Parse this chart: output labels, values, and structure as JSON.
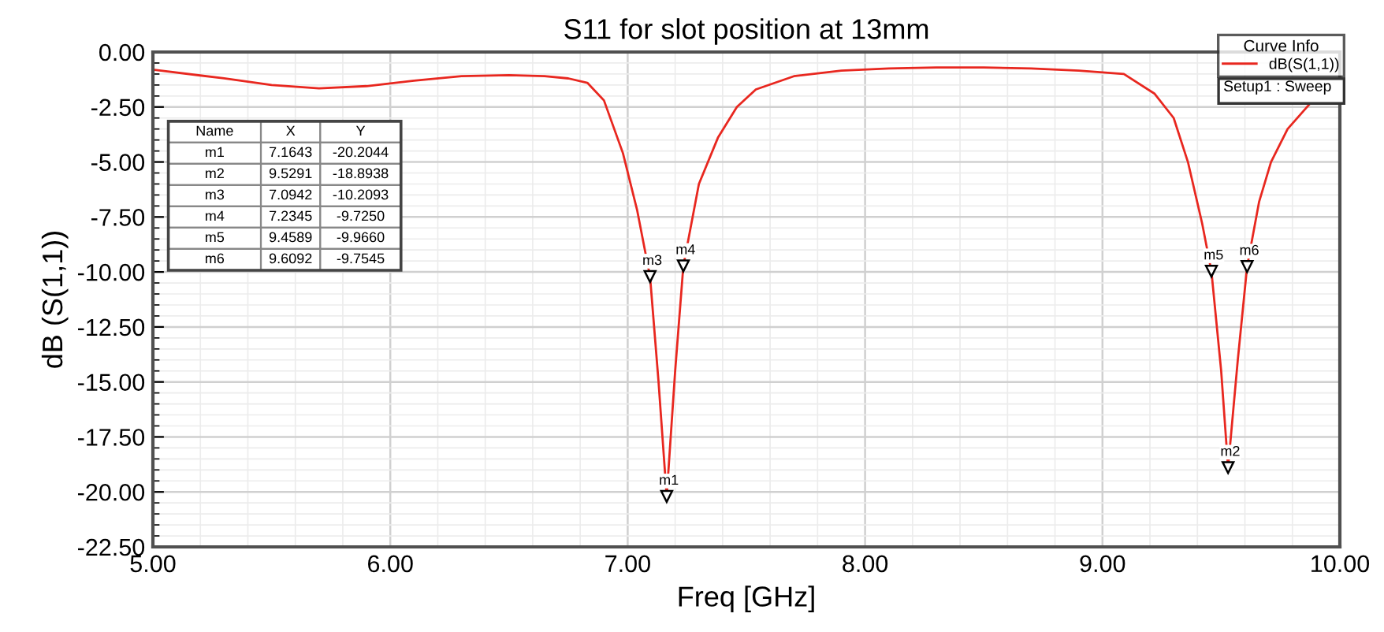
{
  "chart_data": {
    "type": "line",
    "title": "S11 for slot position at 13mm",
    "xlabel": "Freq [GHz]",
    "ylabel": "dB (S(1,1))",
    "legend_title": "Curve Info",
    "legend": "top right",
    "grid": true,
    "xlim": [
      5.0,
      10.0
    ],
    "ylim": [
      -22.5,
      0.0
    ],
    "xticks": [
      {
        "value": 5,
        "label": "5.00"
      },
      {
        "value": 6,
        "label": "6.00"
      },
      {
        "value": 7,
        "label": "7.00"
      },
      {
        "value": 8,
        "label": "8.00"
      },
      {
        "value": 9,
        "label": "9.00"
      },
      {
        "value": 10,
        "label": "10.00"
      }
    ],
    "yticks": [
      {
        "value": 0,
        "label": "0.00"
      },
      {
        "value": -2.5,
        "label": "-2.50"
      },
      {
        "value": -5,
        "label": "-5.00"
      },
      {
        "value": -7.5,
        "label": "-7.50"
      },
      {
        "value": -10,
        "label": "-10.00"
      },
      {
        "value": -12.5,
        "label": "-12.50"
      },
      {
        "value": -15,
        "label": "-15.00"
      },
      {
        "value": -17.5,
        "label": "-17.50"
      },
      {
        "value": -20,
        "label": "-20.00"
      },
      {
        "value": -22.5,
        "label": "-22.50"
      }
    ],
    "series": [
      {
        "name": "dB(S(1,1))",
        "color": "#e8271f",
        "x": [
          5.0,
          5.3,
          5.5,
          5.7,
          5.9,
          6.1,
          6.3,
          6.5,
          6.65,
          6.75,
          6.83,
          6.9,
          6.98,
          7.04,
          7.0942,
          7.13,
          7.1643,
          7.2,
          7.2345,
          7.3,
          7.38,
          7.46,
          7.54,
          7.7,
          7.9,
          8.1,
          8.3,
          8.5,
          8.7,
          8.9,
          9.09,
          9.22,
          9.3,
          9.36,
          9.42,
          9.4589,
          9.5,
          9.5291,
          9.57,
          9.6092,
          9.66,
          9.71,
          9.78,
          9.87
        ],
        "values": [
          -0.8,
          -1.2,
          -1.5,
          -1.65,
          -1.55,
          -1.3,
          -1.1,
          -1.05,
          -1.1,
          -1.2,
          -1.4,
          -2.2,
          -4.6,
          -7.2,
          -10.2093,
          -15.0,
          -20.2044,
          -14.5,
          -9.725,
          -6.0,
          -3.9,
          -2.5,
          -1.7,
          -1.1,
          -0.85,
          -0.75,
          -0.7,
          -0.7,
          -0.75,
          -0.85,
          -1.0,
          -1.9,
          -3.0,
          -5.0,
          -7.8,
          -9.966,
          -14.5,
          -18.8938,
          -14.0,
          -9.7545,
          -6.8,
          -5.0,
          -3.5,
          -2.4
        ]
      }
    ],
    "annotations": [
      "Setup1 : Sweep",
      "Name",
      "X",
      "Y",
      "m1",
      "7.1643",
      "-20.2044",
      "m2",
      "9.5291",
      "-18.8938",
      "m3",
      "7.0942",
      "-10.2093",
      "m4",
      "7.2345",
      "-9.7250",
      "m5",
      "9.4589",
      "-9.9660",
      "m6",
      "9.6092",
      "-9.7545",
      {
        "text": "m1",
        "x": 7.1643,
        "y": -20.2044
      },
      {
        "text": "m2",
        "x": 9.5291,
        "y": -18.8938
      },
      {
        "text": "m3",
        "x": 7.0942,
        "y": -10.2093
      },
      {
        "text": "m4",
        "x": 7.2345,
        "y": -9.725
      },
      {
        "text": "m5",
        "x": 9.4589,
        "y": -9.966
      },
      {
        "text": "m6",
        "x": 9.6092,
        "y": -9.7545
      }
    ]
  }
}
